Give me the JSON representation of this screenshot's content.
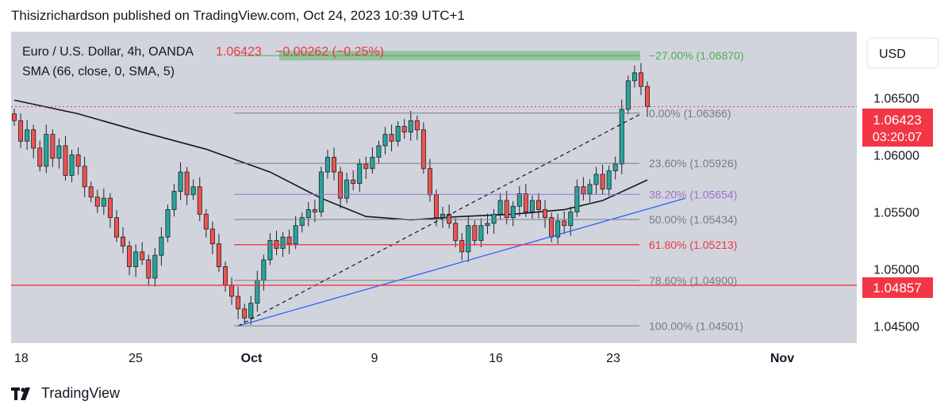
{
  "header": {
    "publisher_line": "Thisizrichardson published on TradingView.com, Oct 24, 2023 10:39 UTC+1"
  },
  "legend": {
    "symbol": "Euro / U.S. Dollar, 4h, OANDA",
    "price": "1.06423",
    "change": "−0.00262 (−0.25%)",
    "indicator": "SMA (66, close, 0, SMA, 5)"
  },
  "currency_button": "USD",
  "price_tags": {
    "last_price": "1.06423",
    "countdown": "03:20:07",
    "line_level": "1.04857"
  },
  "footer": {
    "brand": "TradingView"
  },
  "colors": {
    "background": "#d1d4dc",
    "candle_up": "#26a69a",
    "candle_down": "#ef5350",
    "sma": "#131722",
    "trendline": "#2962ff",
    "red_level": "#f23645",
    "fib_line": "#787b86",
    "fib_382": "#9575cd",
    "fib_ext": "#4caf50"
  },
  "chart_data": {
    "type": "candlestick",
    "symbol": "EURUSD",
    "timeframe": "4h",
    "ylim": [
      1.0435,
      1.0708
    ],
    "y_ticks": [
      "1.06500",
      "1.06000",
      "1.05500",
      "1.05000",
      "1.04500"
    ],
    "x_ticks": [
      "18",
      "25",
      "Oct",
      "9",
      "16",
      "23",
      "Nov"
    ],
    "close_path": [
      1.063,
      1.0612,
      1.0622,
      1.0606,
      1.059,
      1.0618,
      1.0597,
      1.0608,
      1.0582,
      1.06,
      1.059,
      1.0572,
      1.0563,
      1.0555,
      1.0562,
      1.0545,
      1.0528,
      1.052,
      1.0502,
      1.0515,
      1.0508,
      1.0492,
      1.0512,
      1.0528,
      1.0552,
      1.0568,
      1.0585,
      1.0565,
      1.0572,
      1.0548,
      1.0535,
      1.0522,
      1.0502,
      1.0486,
      1.0476,
      1.0465,
      1.0457,
      1.047,
      1.049,
      1.0508,
      1.0525,
      1.0518,
      1.0528,
      1.0522,
      1.0538,
      1.0545,
      1.0552,
      1.055,
      1.0585,
      1.0598,
      1.0585,
      1.0562,
      1.0578,
      1.0575,
      1.0592,
      1.0588,
      1.0598,
      1.0608,
      1.0618,
      1.0612,
      1.0625,
      1.062,
      1.063,
      1.0622,
      1.0588,
      1.0565,
      1.0545,
      1.0548,
      1.054,
      1.0525,
      1.0515,
      1.0538,
      1.0525,
      1.0538,
      1.054,
      1.0548,
      1.056,
      1.0545,
      1.0555,
      1.0566,
      1.055,
      1.056,
      1.0552,
      1.0545,
      1.0528,
      1.0542,
      1.0538,
      1.055,
      1.0572,
      1.0566,
      1.0574,
      1.0583,
      1.057,
      1.0586,
      1.0592,
      1.064,
      1.0665,
      1.0672,
      1.066,
      1.06423
    ],
    "sma_66": [
      {
        "t": 0,
        "v": 1.0648
      },
      {
        "t": 10,
        "v": 1.0636
      },
      {
        "t": 20,
        "v": 1.062
      },
      {
        "t": 30,
        "v": 1.0605
      },
      {
        "t": 40,
        "v": 1.0585
      },
      {
        "t": 48,
        "v": 1.0562
      },
      {
        "t": 55,
        "v": 1.0546
      },
      {
        "t": 62,
        "v": 1.0543
      },
      {
        "t": 70,
        "v": 1.0546
      },
      {
        "t": 78,
        "v": 1.0548
      },
      {
        "t": 86,
        "v": 1.0552
      },
      {
        "t": 92,
        "v": 1.056
      },
      {
        "t": 99,
        "v": 1.0578
      }
    ],
    "fibonacci": [
      {
        "ratio": -0.27,
        "label": "−27.00% (1.06870)",
        "value": 1.0687,
        "color": "#4caf50"
      },
      {
        "ratio": 0.0,
        "label": "0.00% (1.06366)",
        "value": 1.06366,
        "color": "#787b86"
      },
      {
        "ratio": 0.236,
        "label": "23.60% (1.05926)",
        "value": 1.05926,
        "color": "#787b86"
      },
      {
        "ratio": 0.382,
        "label": "38.20% (1.05654)",
        "value": 1.05654,
        "color": "#9575cd"
      },
      {
        "ratio": 0.5,
        "label": "50.00% (1.05434)",
        "value": 1.05434,
        "color": "#787b86"
      },
      {
        "ratio": 0.618,
        "label": "61.80% (1.05213)",
        "value": 1.05213,
        "color": "#f23645"
      },
      {
        "ratio": 0.786,
        "label": "78.60% (1.04900)",
        "value": 1.049,
        "color": "#787b86"
      },
      {
        "ratio": 1.0,
        "label": "100.00% (1.04501)",
        "value": 1.04501,
        "color": "#787b86"
      }
    ],
    "horizontal_levels": [
      {
        "value": 1.04857,
        "style": "solid",
        "color": "#f23645"
      },
      {
        "value": 1.06423,
        "style": "dotted",
        "color": "#f23645"
      }
    ],
    "trendline": [
      {
        "t": 35,
        "v": 1.045
      },
      {
        "t": 100,
        "v": 1.0562
      }
    ],
    "fib_diagonal": [
      {
        "t": 35,
        "v": 1.045
      },
      {
        "t": 98,
        "v": 1.0636
      }
    ]
  }
}
